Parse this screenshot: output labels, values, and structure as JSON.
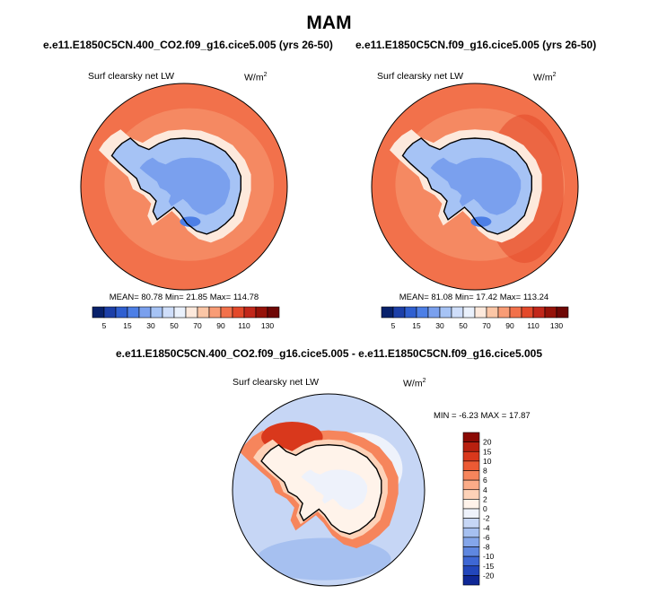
{
  "figure": {
    "title": "MAM",
    "diff_title": "e.e11.E1850C5CN.400_CO2.f09_g16.cice5.005 - e.e11.E1850C5CN.f09_g16.cice5.005"
  },
  "colors": {
    "land_outline": "#000000",
    "background": "#ffffff"
  },
  "chart_data": [
    {
      "type": "heatmap",
      "projection": "south-polar-stereographic",
      "title": "e.e11.E1850C5CN.400_CO2.f09_g16.cice5.005 (yrs 26-50)",
      "variable": "Surf clearsky net LW",
      "units_base": "W/m",
      "units_exp": "2",
      "stats": {
        "mean": "80.78",
        "min": "21.85",
        "max": "114.78"
      },
      "stats_text": "MEAN=  80.78  Min=  21.85  Max= 114.78",
      "colorbar": {
        "orientation": "horizontal",
        "levels": [
          5,
          10,
          15,
          20,
          30,
          40,
          50,
          60,
          70,
          80,
          90,
          100,
          110,
          120,
          130
        ],
        "tick_labels": [
          "5",
          "15",
          "30",
          "50",
          "70",
          "90",
          "110",
          "130"
        ],
        "colors": [
          "#08216b",
          "#1c3fa8",
          "#2f5fd0",
          "#4d7fe6",
          "#7aa0ee",
          "#a6c3f5",
          "#cfdefa",
          "#eaf1fc",
          "#fde9dc",
          "#fbc6a6",
          "#f89c76",
          "#f2714b",
          "#e3492a",
          "#c2271a",
          "#961209",
          "#6e0705"
        ]
      },
      "field": {
        "ocean": "#f2714b",
        "ocean_inner": "#f89c76",
        "ice_ring": "#fde9dc",
        "interior": "#a6c3f5",
        "deep_interior": "#7aa0ee"
      }
    },
    {
      "type": "heatmap",
      "projection": "south-polar-stereographic",
      "title": "e.e11.E1850C5CN.f09_g16.cice5.005 (yrs 26-50)",
      "variable": "Surf clearsky net LW",
      "units_base": "W/m",
      "units_exp": "2",
      "stats": {
        "mean": "81.08",
        "min": "17.42",
        "max": "113.24"
      },
      "stats_text": "MEAN=  81.08  Min=  17.42  Max= 113.24",
      "colorbar": {
        "orientation": "horizontal",
        "levels": [
          5,
          10,
          15,
          20,
          30,
          40,
          50,
          60,
          70,
          80,
          90,
          100,
          110,
          120,
          130
        ],
        "tick_labels": [
          "5",
          "15",
          "30",
          "50",
          "70",
          "90",
          "110",
          "130"
        ],
        "colors": [
          "#08216b",
          "#1c3fa8",
          "#2f5fd0",
          "#4d7fe6",
          "#7aa0ee",
          "#a6c3f5",
          "#cfdefa",
          "#eaf1fc",
          "#fde9dc",
          "#fbc6a6",
          "#f89c76",
          "#f2714b",
          "#e3492a",
          "#c2271a",
          "#961209",
          "#6e0705"
        ]
      },
      "field": {
        "ocean": "#f2714b",
        "ocean_inner": "#f89c76",
        "ice_ring": "#fde9dc",
        "interior": "#a6c3f5",
        "deep_interior": "#7aa0ee"
      }
    },
    {
      "type": "heatmap",
      "projection": "south-polar-stereographic",
      "title": "difference",
      "variable": "Surf clearsky net LW",
      "units_base": "W/m",
      "units_exp": "2",
      "stats": {
        "min": "-6.23",
        "max": "17.87"
      },
      "stats_text": "MIN =  -6.23 MAX =  17.87",
      "colorbar": {
        "orientation": "vertical",
        "levels": [
          -20,
          -15,
          -10,
          -8,
          -6,
          -4,
          -2,
          0,
          2,
          4,
          6,
          8,
          10,
          15,
          20
        ],
        "tick_labels": [
          "20",
          "15",
          "10",
          "8",
          "6",
          "4",
          "2",
          "0",
          "-2",
          "-4",
          "-6",
          "-8",
          "-10",
          "-15",
          "-20"
        ],
        "colors": [
          "#8b0a04",
          "#b8200f",
          "#d9381c",
          "#ec5a34",
          "#f6855c",
          "#fbac88",
          "#fdd2b8",
          "#fff3ea",
          "#eef2fb",
          "#c6d6f5",
          "#a6c0f0",
          "#84a6ea",
          "#5f87e0",
          "#3e67d4",
          "#2246bb",
          "#0f2796"
        ]
      },
      "field": {
        "ocean": "#c6d6f5",
        "ocean_light": "#eef2fb",
        "ring_strong": "#d9381c",
        "ring_mid": "#f6855c",
        "interior": "#fdd2b8",
        "interior_light": "#fff3ea"
      }
    }
  ]
}
